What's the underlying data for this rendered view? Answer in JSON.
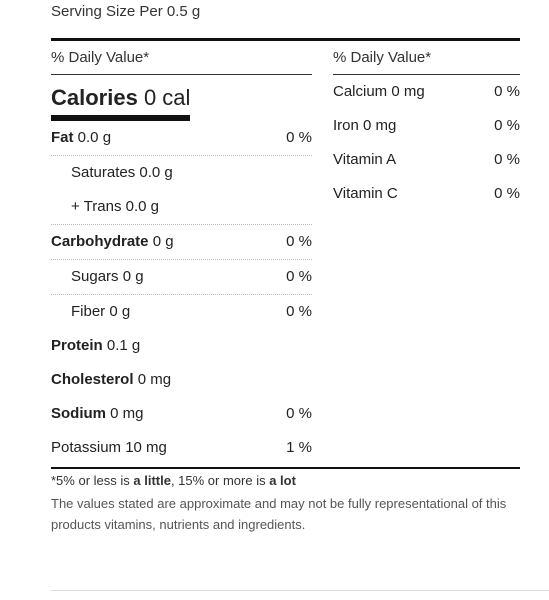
{
  "serving": "Serving Size Per 0.5 g",
  "left": {
    "dv_header": "% Daily Value*",
    "calories_label": "Calories",
    "calories_value": "0 cal",
    "rows": [
      {
        "label": "Fat",
        "value": "0.0 g",
        "pct": "0 %"
      },
      {
        "label": "Saturates 0.0 g",
        "value": "",
        "pct": ""
      },
      {
        "label": "+ Trans 0.0 g",
        "value": "",
        "pct": ""
      },
      {
        "label": "Carbohydrate",
        "value": "0 g",
        "pct": "0 %"
      },
      {
        "label": "Sugars 0 g",
        "value": "",
        "pct": "0 %"
      },
      {
        "label": "Fiber 0 g",
        "value": "",
        "pct": "0 %"
      },
      {
        "label": "Protein",
        "value": "0.1 g",
        "pct": ""
      },
      {
        "label": "Cholesterol",
        "value": "0 mg",
        "pct": ""
      },
      {
        "label": "Sodium",
        "value": "0 mg",
        "pct": "0 %"
      },
      {
        "label": "Potassium 10 mg",
        "value": "",
        "pct": "1 %"
      }
    ]
  },
  "right": {
    "dv_header": "% Daily Value*",
    "rows": [
      {
        "label": "Calcium 0 mg",
        "pct": "0 %"
      },
      {
        "label": "Iron 0 mg",
        "pct": "0 %"
      },
      {
        "label": "Vitamin A",
        "pct": "0 %"
      },
      {
        "label": "Vitamin C",
        "pct": "0 %"
      }
    ]
  },
  "footnote": {
    "prefix": "*5% or less is ",
    "little": "a little",
    "middle": ", 15% or more is ",
    "lot": "a lot"
  },
  "disclaimer": "The values stated are approximate and may not be fully representational of this products vitamins, nutrients and ingredients."
}
